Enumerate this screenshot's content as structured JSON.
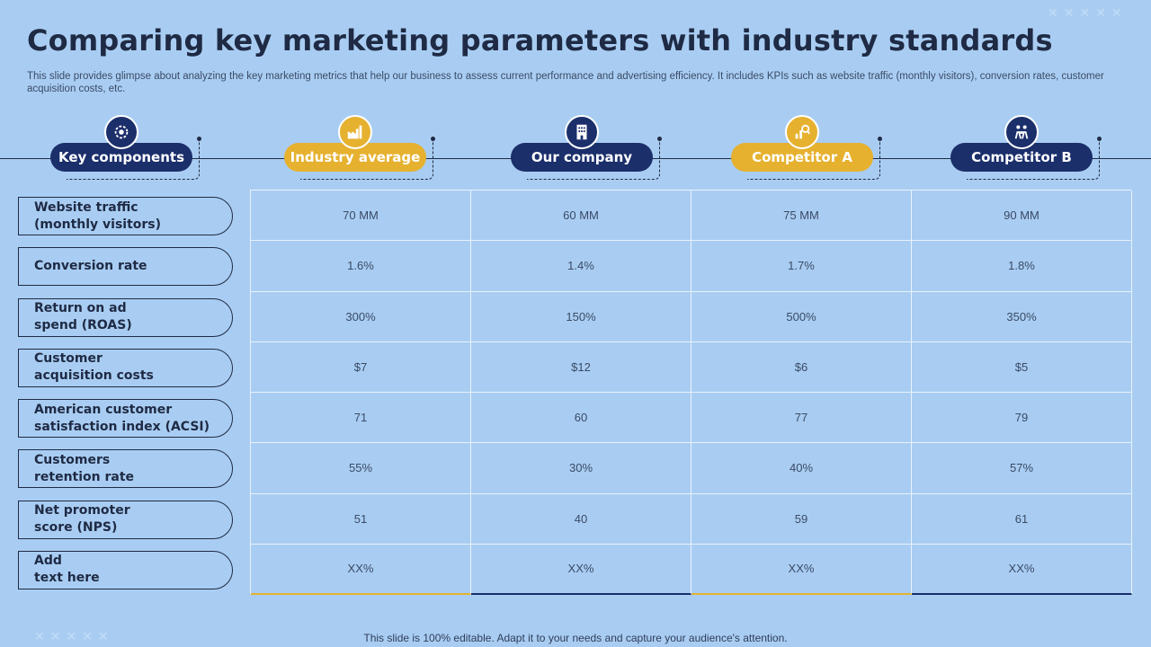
{
  "title": "Comparing key marketing parameters with industry standards",
  "subtitle": "This slide provides glimpse about analyzing the key marketing metrics that help our business to assess current performance and advertising efficiency. It includes KPIs such as website traffic (monthly visitors), conversion rates, customer acquisition costs, etc.",
  "headers": [
    {
      "label": "Key components",
      "style": "navy",
      "icon": "gear-settings-icon"
    },
    {
      "label": "Industry average",
      "style": "gold",
      "icon": "factory-icon"
    },
    {
      "label": "Our company",
      "style": "navy",
      "icon": "office-building-icon"
    },
    {
      "label": "Competitor A",
      "style": "gold",
      "icon": "analysis-chart-icon"
    },
    {
      "label": "Competitor B",
      "style": "navy",
      "icon": "team-meeting-icon"
    }
  ],
  "rows": [
    {
      "label": "Website traffic\n(monthly visitors)",
      "values": [
        "70 MM",
        "60 MM",
        "75 MM",
        "90 MM"
      ]
    },
    {
      "label": "Conversion rate",
      "values": [
        "1.6%",
        "1.4%",
        "1.7%",
        "1.8%"
      ]
    },
    {
      "label": "Return on ad\nspend (ROAS)",
      "values": [
        "300%",
        "150%",
        "500%",
        "350%"
      ]
    },
    {
      "label": "Customer\nacquisition costs",
      "values": [
        "$7",
        "$12",
        "$6",
        "$5"
      ]
    },
    {
      "label": "American customer\nsatisfaction index (ACSI)",
      "values": [
        "71",
        "60",
        "77",
        "79"
      ]
    },
    {
      "label": "Customers\nretention rate",
      "values": [
        "55%",
        "30%",
        "40%",
        "57%"
      ]
    },
    {
      "label": "Net promoter\nscore (NPS)",
      "values": [
        "51",
        "40",
        "59",
        "61"
      ]
    },
    {
      "label": "Add\ntext here",
      "values": [
        "XX%",
        "XX%",
        "XX%",
        "XX%"
      ]
    }
  ],
  "footer": "This slide is 100% editable. Adapt it to your needs and capture your audience's attention.",
  "colors": {
    "navy": "#1b2f6b",
    "gold": "#e6b12f",
    "background": "#a9cdf2"
  }
}
